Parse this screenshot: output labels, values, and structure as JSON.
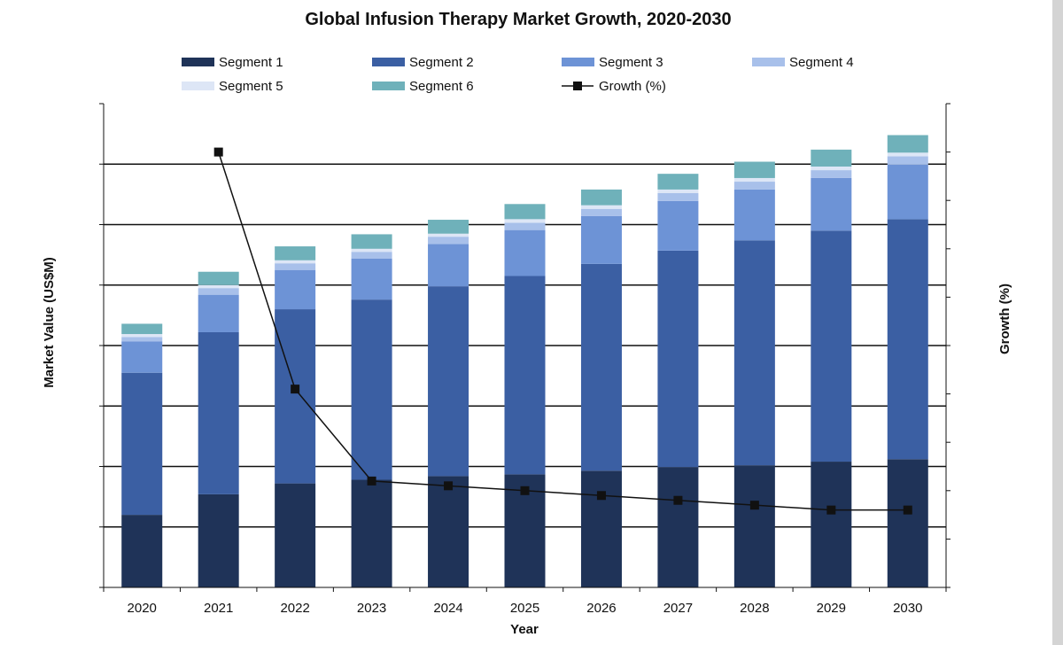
{
  "chart_data": {
    "type": "bar",
    "stacked": true,
    "title": "Global Infusion Therapy Market Growth, 2020-2030",
    "xlabel": "Year",
    "ylabel": "Market Value (US$M)",
    "y2label": "Growth (%)",
    "categories": [
      "2020",
      "2021",
      "2022",
      "2023",
      "2024",
      "2025",
      "2026",
      "2027",
      "2028",
      "2029",
      "2030"
    ],
    "series": [
      {
        "name": "Segment 1",
        "color": "#1f3358",
        "values": [
          1.2,
          1.54,
          1.72,
          1.78,
          1.84,
          1.87,
          1.93,
          1.99,
          2.02,
          2.08,
          2.12
        ]
      },
      {
        "name": "Segment 2",
        "color": "#3b5fa3",
        "values": [
          2.35,
          2.68,
          2.88,
          2.98,
          3.14,
          3.28,
          3.42,
          3.58,
          3.72,
          3.82,
          3.97
        ]
      },
      {
        "name": "Segment 3",
        "color": "#6d93d6",
        "values": [
          0.52,
          0.62,
          0.65,
          0.68,
          0.7,
          0.76,
          0.79,
          0.82,
          0.84,
          0.87,
          0.9
        ]
      },
      {
        "name": "Segment 4",
        "color": "#a8c0ea",
        "values": [
          0.07,
          0.11,
          0.11,
          0.11,
          0.12,
          0.12,
          0.12,
          0.13,
          0.13,
          0.13,
          0.14
        ]
      },
      {
        "name": "Segment 5",
        "color": "#dde6f6",
        "values": [
          0.05,
          0.05,
          0.05,
          0.05,
          0.05,
          0.06,
          0.06,
          0.06,
          0.06,
          0.06,
          0.06
        ]
      },
      {
        "name": "Segment 6",
        "color": "#6fb1ba",
        "values": [
          0.17,
          0.22,
          0.23,
          0.24,
          0.23,
          0.25,
          0.26,
          0.26,
          0.27,
          0.28,
          0.29
        ]
      }
    ],
    "line_series": {
      "name": "Growth (%)",
      "color": "#111111",
      "values": [
        null,
        9.0,
        4.1,
        2.2,
        2.1,
        2.0,
        1.9,
        1.8,
        1.7,
        1.6,
        1.6
      ]
    },
    "ylim": [
      0,
      8
    ],
    "y2lim": [
      0,
      10
    ],
    "grid": true,
    "legend_position": "top"
  }
}
